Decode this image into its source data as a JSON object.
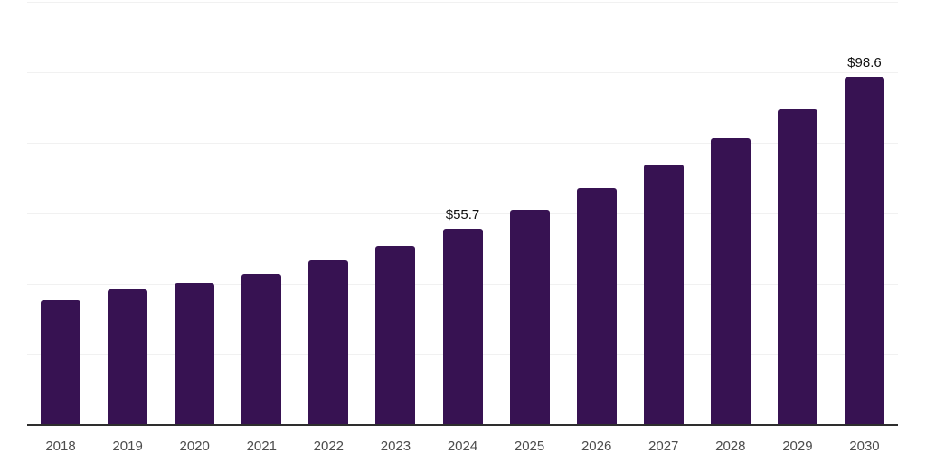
{
  "chart_data": {
    "type": "bar",
    "title": "",
    "xlabel": "",
    "ylabel": "",
    "categories": [
      "2018",
      "2019",
      "2020",
      "2021",
      "2022",
      "2023",
      "2024",
      "2025",
      "2026",
      "2027",
      "2028",
      "2029",
      "2030"
    ],
    "values": [
      35.3,
      38.4,
      40.3,
      42.9,
      46.6,
      50.8,
      55.7,
      61.0,
      67.2,
      73.8,
      81.2,
      89.4,
      98.6
    ],
    "point_labels": {
      "2024": "$55.7",
      "2030": "$98.6"
    },
    "ylim": [
      0,
      120
    ],
    "gridline_step": 20,
    "grid": "on",
    "legend": "none",
    "colors": {
      "bar": "#371252",
      "gridline": "#f1f1f1",
      "axis": "#2e2e2e",
      "tick_label": "#4c4c4c",
      "value_label": "#111111",
      "background": "#ffffff"
    }
  }
}
